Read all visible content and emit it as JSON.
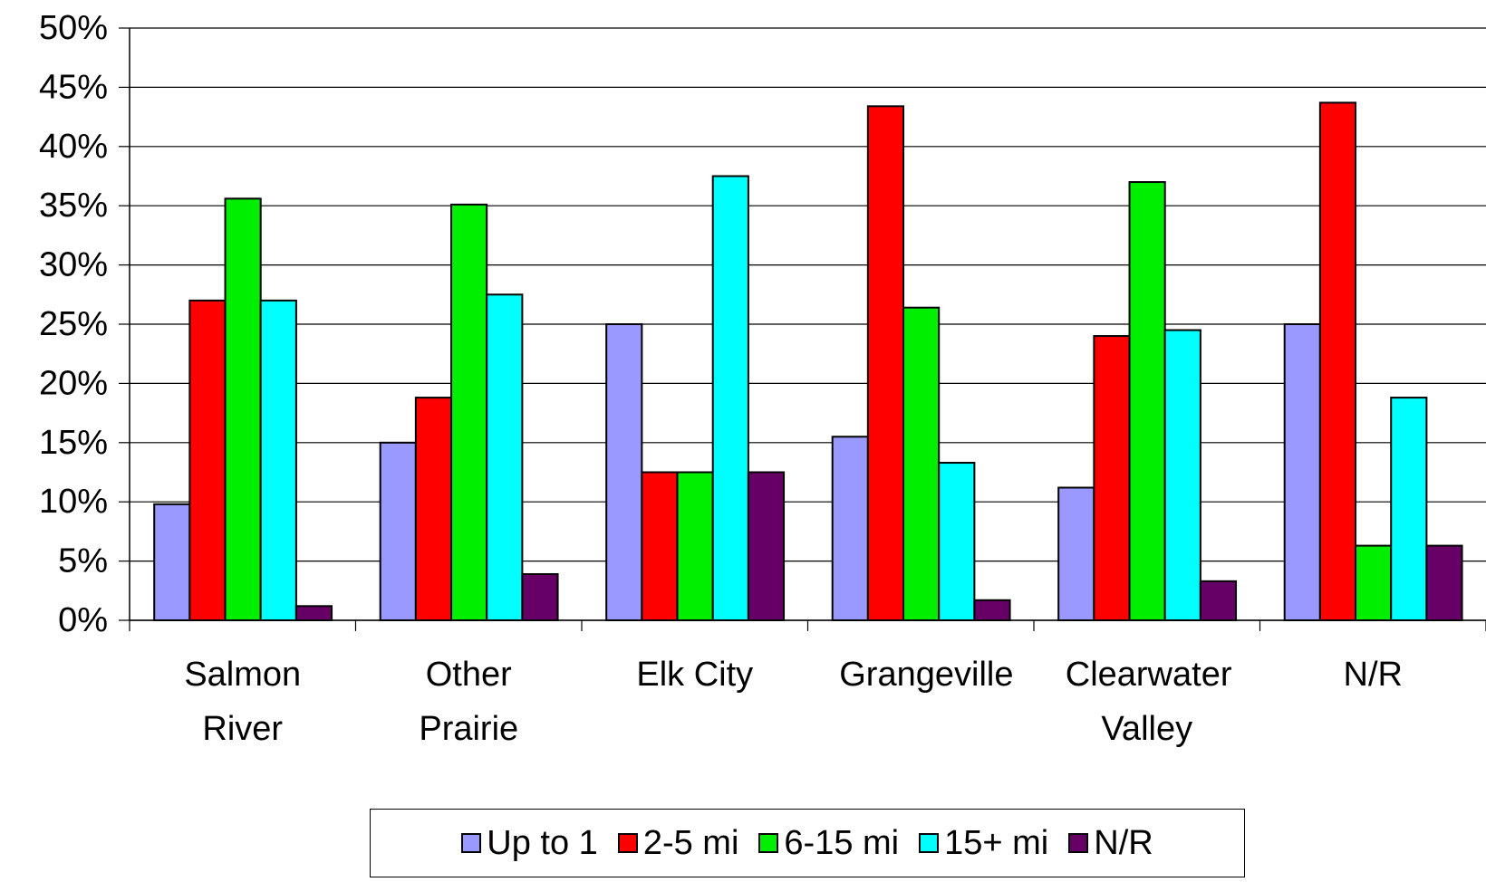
{
  "chart_data": {
    "type": "bar",
    "categories": [
      "Salmon River",
      "Other Prairie",
      "Elk City",
      "Grangeville",
      "Clearwater Valley",
      "N/R"
    ],
    "series": [
      {
        "name": "Up to 1",
        "color": "#9999ff",
        "values": [
          9.8,
          15,
          25,
          15.5,
          11.2,
          25
        ]
      },
      {
        "name": "2-5 mi",
        "color": "#ff0000",
        "values": [
          27,
          18.8,
          12.5,
          43.4,
          24,
          43.7
        ]
      },
      {
        "name": "6-15 mi",
        "color": "#00ee00",
        "values": [
          35.6,
          35.1,
          12.5,
          26.4,
          37,
          6.3
        ]
      },
      {
        "name": "15+ mi",
        "color": "#00ffff",
        "values": [
          27,
          27.5,
          37.5,
          13.3,
          24.5,
          18.8
        ]
      },
      {
        "name": "N/R",
        "color": "#660066",
        "values": [
          1.2,
          3.9,
          12.5,
          1.7,
          3.3,
          6.3
        ]
      }
    ],
    "ylim": [
      0,
      50
    ],
    "yticks": [
      {
        "value": 0,
        "label": "0%"
      },
      {
        "value": 5,
        "label": "5%"
      },
      {
        "value": 10,
        "label": "10%"
      },
      {
        "value": 15,
        "label": "15%"
      },
      {
        "value": 20,
        "label": "20%"
      },
      {
        "value": 25,
        "label": "25%"
      },
      {
        "value": 30,
        "label": "30%"
      },
      {
        "value": 35,
        "label": "35%"
      },
      {
        "value": 40,
        "label": "40%"
      },
      {
        "value": 45,
        "label": "45%"
      },
      {
        "value": 50,
        "label": "50%"
      }
    ],
    "grid": true,
    "legend": "bottom"
  }
}
